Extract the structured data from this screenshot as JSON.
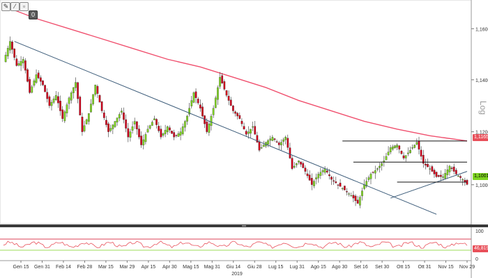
{
  "toolbar": {
    "buttons": [
      {
        "name": "pencil-icon",
        "glyph": "✎"
      },
      {
        "name": "line-tool-icon",
        "glyph": "⁄"
      },
      {
        "name": "settings-icon",
        "glyph": "▫"
      },
      {
        "name": "zero-indicator-icon",
        "glyph": "0"
      }
    ]
  },
  "log_label": "Log",
  "price_axis": {
    "ticks": [
      "1,1600",
      "1,1400",
      "1,1200",
      "1,1000"
    ]
  },
  "price_tags": {
    "red": "1,1165",
    "green": "1,1001"
  },
  "osc_axis": {
    "ticks": [
      "100",
      "0"
    ],
    "value": "46,8195"
  },
  "date_axis": {
    "labels": [
      "Gen 15",
      "Gen 31",
      "Feb 14",
      "Feb 28",
      "Mar 15",
      "Mar 29",
      "Apr 15",
      "Apr 30",
      "Mag 15",
      "Mag 31",
      "Giu 14",
      "Giu 28",
      "Lug 15",
      "Lug 31",
      "Ago 15",
      "Ago 30",
      "Set 16",
      "Set 30",
      "Ott 15",
      "Ott 31",
      "Nov 15",
      "Nov 29"
    ],
    "year": "2019"
  },
  "chart_data": {
    "type": "candlestick",
    "scale": "log",
    "ylim": [
      1.0865,
      1.17
    ],
    "ticks": [
      1.16,
      1.14,
      1.12,
      1.1
    ],
    "close_path": [
      [
        0,
        1.147
      ],
      [
        3,
        1.155
      ],
      [
        6,
        1.1455
      ],
      [
        9,
        1.148
      ],
      [
        12,
        1.135
      ],
      [
        15,
        1.142
      ],
      [
        18,
        1.138
      ],
      [
        21,
        1.13
      ],
      [
        24,
        1.134
      ],
      [
        27,
        1.125
      ],
      [
        30,
        1.133
      ],
      [
        33,
        1.139
      ],
      [
        36,
        1.12
      ],
      [
        39,
        1.127
      ],
      [
        42,
        1.138
      ],
      [
        45,
        1.128
      ],
      [
        48,
        1.12
      ],
      [
        51,
        1.124
      ],
      [
        54,
        1.128
      ],
      [
        57,
        1.118
      ],
      [
        60,
        1.124
      ],
      [
        63,
        1.115
      ],
      [
        66,
        1.121
      ],
      [
        69,
        1.125
      ],
      [
        72,
        1.118
      ],
      [
        75,
        1.122
      ],
      [
        78,
        1.118
      ],
      [
        81,
        1.12
      ],
      [
        84,
        1.126
      ],
      [
        87,
        1.135
      ],
      [
        90,
        1.129
      ],
      [
        93,
        1.12
      ],
      [
        96,
        1.129
      ],
      [
        99,
        1.141
      ],
      [
        102,
        1.134
      ],
      [
        105,
        1.128
      ],
      [
        108,
        1.125
      ],
      [
        111,
        1.119
      ],
      [
        114,
        1.122
      ],
      [
        117,
        1.113
      ],
      [
        120,
        1.116
      ],
      [
        123,
        1.118
      ],
      [
        126,
        1.115
      ],
      [
        129,
        1.118
      ],
      [
        132,
        1.106
      ],
      [
        135,
        1.109
      ],
      [
        138,
        1.105
      ],
      [
        141,
        1.1
      ],
      [
        144,
        1.104
      ],
      [
        147,
        1.106
      ],
      [
        150,
        1.102
      ],
      [
        153,
        1.1
      ],
      [
        156,
        1.098
      ],
      [
        159,
        1.096
      ],
      [
        162,
        1.093
      ],
      [
        165,
        1.1
      ],
      [
        168,
        1.104
      ],
      [
        171,
        1.106
      ],
      [
        174,
        1.109
      ],
      [
        177,
        1.114
      ],
      [
        180,
        1.115
      ],
      [
        183,
        1.11
      ],
      [
        186,
        1.113
      ],
      [
        189,
        1.116
      ],
      [
        192,
        1.108
      ],
      [
        195,
        1.106
      ],
      [
        198,
        1.103
      ],
      [
        201,
        1.103
      ],
      [
        204,
        1.107
      ],
      [
        207,
        1.104
      ],
      [
        210,
        1.102
      ],
      [
        212,
        1.1001
      ]
    ],
    "ma_200": [
      [
        0,
        1.169
      ],
      [
        15,
        1.164
      ],
      [
        30,
        1.16
      ],
      [
        45,
        1.156
      ],
      [
        60,
        1.152
      ],
      [
        75,
        1.148
      ],
      [
        90,
        1.145
      ],
      [
        105,
        1.141
      ],
      [
        120,
        1.137
      ],
      [
        135,
        1.132
      ],
      [
        150,
        1.128
      ],
      [
        165,
        1.124
      ],
      [
        180,
        1.121
      ],
      [
        195,
        1.1185
      ],
      [
        212,
        1.1165
      ]
    ],
    "trendlines": [
      {
        "from": [
          5,
          1.155
        ],
        "to": [
          198,
          1.089
        ]
      },
      {
        "from": [
          177,
          1.095
        ],
        "to": [
          212,
          1.105
        ]
      }
    ],
    "horizontal_lines": [
      {
        "y": 1.1165,
        "x_from": 155,
        "x_to": 212
      },
      {
        "y": 1.1085,
        "x_from": 160,
        "x_to": 212
      },
      {
        "y": 1.101,
        "x_from": 180,
        "x_to": 212
      }
    ],
    "oscillator": {
      "ylim": [
        0,
        100
      ],
      "upper": 70,
      "lower": 30,
      "last": 46.8195
    },
    "x_index_range": [
      0,
      212
    ]
  }
}
